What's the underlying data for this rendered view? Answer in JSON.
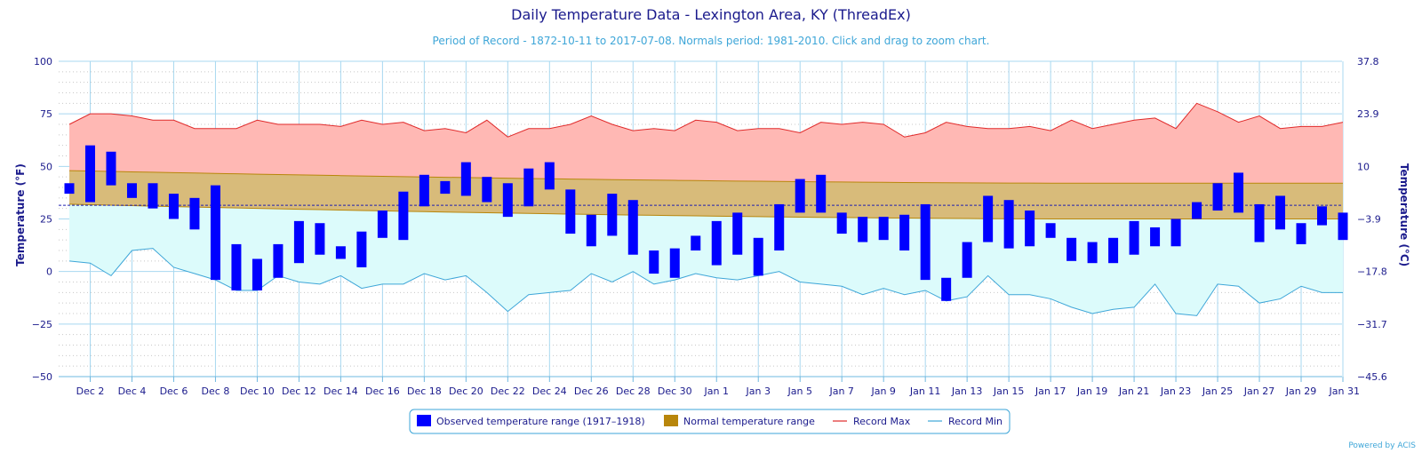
{
  "chart_data": {
    "type": "bar",
    "title": "Daily Temperature Data - Lexington Area, KY (ThreadEx)",
    "subtitle": "Period of Record - 1872-10-11 to 2017-07-08. Normals period: 1981-2010. Click and drag to zoom chart.",
    "ylabel": "Temperature (°F)",
    "ylabel_right": "Temperature (°C)",
    "ylim": [
      -50,
      100
    ],
    "y_ticks": [
      "100",
      "75",
      "50",
      "25",
      "0",
      "−25",
      "−50"
    ],
    "y_ticks_right": [
      "37.8",
      "23.9",
      "10",
      "−3.9",
      "−17.8",
      "−31.7",
      "−45.6"
    ],
    "x_tick_labels": [
      "Dec 2",
      "Dec 4",
      "Dec 6",
      "Dec 8",
      "Dec 10",
      "Dec 12",
      "Dec 14",
      "Dec 16",
      "Dec 18",
      "Dec 20",
      "Dec 22",
      "Dec 24",
      "Dec 26",
      "Dec 28",
      "Dec 30",
      "Jan 1",
      "Jan 3",
      "Jan 5",
      "Jan 7",
      "Jan 9",
      "Jan 11",
      "Jan 13",
      "Jan 15",
      "Jan 17",
      "Jan 19",
      "Jan 21",
      "Jan 23",
      "Jan 25",
      "Jan 27",
      "Jan 29",
      "Jan 31"
    ],
    "days": [
      "Dec 1",
      "Dec 2",
      "Dec 3",
      "Dec 4",
      "Dec 5",
      "Dec 6",
      "Dec 7",
      "Dec 8",
      "Dec 9",
      "Dec 10",
      "Dec 11",
      "Dec 12",
      "Dec 13",
      "Dec 14",
      "Dec 15",
      "Dec 16",
      "Dec 17",
      "Dec 18",
      "Dec 19",
      "Dec 20",
      "Dec 21",
      "Dec 22",
      "Dec 23",
      "Dec 24",
      "Dec 25",
      "Dec 26",
      "Dec 27",
      "Dec 28",
      "Dec 29",
      "Dec 30",
      "Dec 31",
      "Jan 1",
      "Jan 2",
      "Jan 3",
      "Jan 4",
      "Jan 5",
      "Jan 6",
      "Jan 7",
      "Jan 8",
      "Jan 9",
      "Jan 10",
      "Jan 11",
      "Jan 12",
      "Jan 13",
      "Jan 14",
      "Jan 15",
      "Jan 16",
      "Jan 17",
      "Jan 18",
      "Jan 19",
      "Jan 20",
      "Jan 21",
      "Jan 22",
      "Jan 23",
      "Jan 24",
      "Jan 25",
      "Jan 26",
      "Jan 27",
      "Jan 28",
      "Jan 29",
      "Jan 30",
      "Jan 31"
    ],
    "series": [
      {
        "name": "Observed temperature range (1917–1918)",
        "color": "#0000ff",
        "ranges": [
          [
            37,
            42
          ],
          [
            33,
            60
          ],
          [
            41,
            57
          ],
          [
            35,
            42
          ],
          [
            30,
            42
          ],
          [
            25,
            37
          ],
          [
            20,
            35
          ],
          [
            -4,
            41
          ],
          [
            -9,
            13
          ],
          [
            -9,
            6
          ],
          [
            -3,
            13
          ],
          [
            4,
            24
          ],
          [
            8,
            23
          ],
          [
            6,
            12
          ],
          [
            2,
            19
          ],
          [
            16,
            29
          ],
          [
            15,
            38
          ],
          [
            31,
            46
          ],
          [
            37,
            43
          ],
          [
            36,
            52
          ],
          [
            33,
            45
          ],
          [
            26,
            42
          ],
          [
            31,
            49
          ],
          [
            39,
            52
          ],
          [
            18,
            39
          ],
          [
            12,
            27
          ],
          [
            17,
            37
          ],
          [
            8,
            34
          ],
          [
            -1,
            10
          ],
          [
            -3,
            11
          ],
          [
            10,
            17
          ],
          [
            3,
            24
          ],
          [
            8,
            28
          ],
          [
            -2,
            16
          ],
          [
            10,
            32
          ],
          [
            28,
            44
          ],
          [
            28,
            46
          ],
          [
            18,
            28
          ],
          [
            14,
            26
          ],
          [
            15,
            26
          ],
          [
            10,
            27
          ],
          [
            -4,
            32
          ],
          [
            -14,
            -3
          ],
          [
            -3,
            14
          ],
          [
            14,
            36
          ],
          [
            11,
            34
          ],
          [
            12,
            29
          ],
          [
            16,
            23
          ],
          [
            5,
            16
          ],
          [
            4,
            14
          ],
          [
            4,
            16
          ],
          [
            8,
            24
          ],
          [
            12,
            21
          ],
          [
            12,
            25
          ],
          [
            25,
            33
          ],
          [
            29,
            42
          ],
          [
            28,
            47
          ],
          [
            14,
            32
          ],
          [
            20,
            36
          ],
          [
            13,
            23
          ],
          [
            22,
            31
          ],
          [
            15,
            28
          ]
        ]
      },
      {
        "name": "Normal temperature range",
        "color": "#b8860b",
        "low_start": 32,
        "low_end": 25,
        "low_min_day": "Jan 18",
        "high_start": 48,
        "high_end": 42,
        "high_min_day": "Jan 18"
      },
      {
        "name": "Record Max",
        "color": "#e02a2a",
        "values": [
          70,
          75,
          75,
          74,
          72,
          72,
          68,
          68,
          68,
          72,
          70,
          70,
          70,
          69,
          72,
          70,
          71,
          67,
          68,
          66,
          72,
          64,
          68,
          68,
          70,
          74,
          70,
          67,
          68,
          67,
          72,
          71,
          67,
          68,
          68,
          66,
          71,
          70,
          71,
          70,
          64,
          66,
          71,
          69,
          68,
          68,
          69,
          67,
          72,
          68,
          70,
          72,
          73,
          68,
          80,
          76,
          71,
          74,
          68,
          69,
          69,
          71
        ]
      },
      {
        "name": "Record Min",
        "color": "#3ea6d8",
        "values": [
          5,
          4,
          -2,
          10,
          11,
          2,
          -1,
          -4,
          -9,
          -9,
          -2,
          -5,
          -6,
          -2,
          -8,
          -6,
          -6,
          -1,
          -4,
          -2,
          -10,
          -19,
          -11,
          -10,
          -9,
          -1,
          -5,
          0,
          -6,
          -4,
          -1,
          -3,
          -4,
          -2,
          0,
          -5,
          -6,
          -7,
          -11,
          -8,
          -11,
          -9,
          -14,
          -12,
          -2,
          -11,
          -11,
          -13,
          -17,
          -20,
          -18,
          -17,
          -6,
          -20,
          -21,
          -6,
          -7,
          -15,
          -13,
          -7,
          -10,
          -10
        ]
      }
    ],
    "mean_line": 31.5,
    "legend_position": "bottom-center",
    "grid": true
  },
  "credit": "Powered by ACIS"
}
